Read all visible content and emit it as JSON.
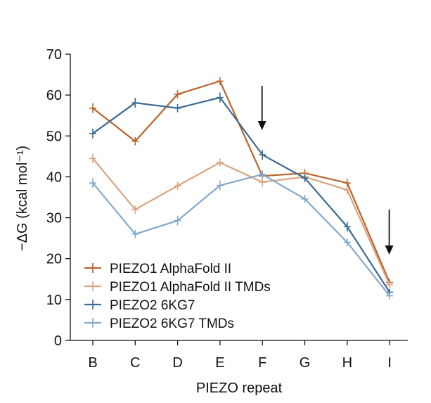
{
  "chart_data": {
    "type": "line",
    "xlabel": "PIEZO repeat",
    "ylabel": "−ΔG (kcal mol⁻¹)",
    "ylim": [
      0,
      70
    ],
    "yticks": [
      0,
      10,
      20,
      30,
      40,
      50,
      60,
      70
    ],
    "categories": [
      "B",
      "C",
      "D",
      "E",
      "F",
      "G",
      "H",
      "I"
    ],
    "series": [
      {
        "name": "PIEZO1 AlphaFold II",
        "color": "#b8642c",
        "values": [
          56.8,
          48.7,
          60.2,
          63.4,
          40.2,
          40.9,
          38.5,
          14.2
        ],
        "errors": [
          1.2,
          1.0,
          1.0,
          1.0,
          1.2,
          1.0,
          1.0,
          0.8
        ]
      },
      {
        "name": "PIEZO1 AlphaFold II TMDs",
        "color": "#dba47e",
        "values": [
          44.5,
          32.0,
          37.8,
          43.5,
          38.7,
          40.0,
          36.8,
          13.6
        ],
        "errors": [
          1.2,
          1.0,
          1.0,
          1.0,
          1.0,
          1.0,
          1.0,
          0.8
        ]
      },
      {
        "name": "PIEZO2 6KG7",
        "color": "#3b6a93",
        "values": [
          50.6,
          58.1,
          56.8,
          59.4,
          45.4,
          39.7,
          27.8,
          11.8
        ],
        "errors": [
          1.2,
          1.2,
          1.0,
          1.2,
          1.2,
          1.0,
          1.2,
          0.8
        ]
      },
      {
        "name": "PIEZO2 6KG7 TMDs",
        "color": "#85a9cc",
        "values": [
          38.5,
          26.0,
          29.3,
          37.9,
          40.6,
          34.6,
          24.0,
          10.9
        ],
        "errors": [
          1.2,
          1.0,
          1.2,
          1.2,
          1.0,
          1.0,
          1.0,
          0.8
        ]
      }
    ],
    "annotations": [
      {
        "type": "arrow",
        "category": "F",
        "label": ""
      },
      {
        "type": "arrow",
        "category": "I",
        "label": ""
      }
    ],
    "legend_position": "bottom-left"
  }
}
